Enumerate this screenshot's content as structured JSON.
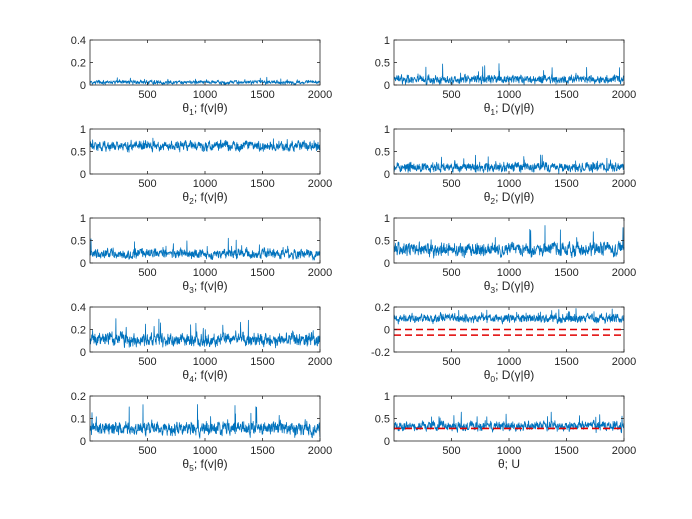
{
  "chart_data": [
    {
      "type": "line",
      "label": {
        "param": "θ",
        "sub": "1",
        "rest": "; f(v|θ)"
      },
      "xlim": [
        0,
        2000
      ],
      "ylim": [
        0,
        0.4
      ],
      "yticks": [
        {
          "v": 0,
          "t": "0"
        },
        {
          "v": 0.2,
          "t": "0.2"
        },
        {
          "v": 0.4,
          "t": "0.4"
        }
      ],
      "xticks": [
        {
          "v": 500,
          "t": "500"
        },
        {
          "v": 1000,
          "t": "1000"
        },
        {
          "v": 1500,
          "t": "1500"
        },
        {
          "v": 2000,
          "t": "2000"
        }
      ],
      "series": [
        {
          "name": "trace",
          "mean": 0.025,
          "spread": 0.012,
          "spikeMax": 0.075,
          "min": 0
        }
      ],
      "ref_lines": []
    },
    {
      "type": "line",
      "label": {
        "param": "θ",
        "sub": "1",
        "rest": "; D(γ|θ)"
      },
      "xlim": [
        0,
        2000
      ],
      "ylim": [
        0,
        1
      ],
      "yticks": [
        {
          "v": 0,
          "t": "0"
        },
        {
          "v": 0.5,
          "t": "0.5"
        },
        {
          "v": 1,
          "t": "1"
        }
      ],
      "xticks": [
        {
          "v": 500,
          "t": "500"
        },
        {
          "v": 1000,
          "t": "1000"
        },
        {
          "v": 1500,
          "t": "1500"
        },
        {
          "v": 2000,
          "t": "2000"
        }
      ],
      "series": [
        {
          "name": "trace",
          "mean": 0.12,
          "spread": 0.06,
          "spikeMax": 0.5,
          "min": 0
        }
      ],
      "ref_lines": []
    },
    {
      "type": "line",
      "label": {
        "param": "θ",
        "sub": "2",
        "rest": "; f(v|θ)"
      },
      "xlim": [
        0,
        2000
      ],
      "ylim": [
        0,
        1
      ],
      "yticks": [
        {
          "v": 0,
          "t": "0"
        },
        {
          "v": 0.5,
          "t": "0.5"
        },
        {
          "v": 1,
          "t": "1"
        }
      ],
      "xticks": [
        {
          "v": 500,
          "t": "500"
        },
        {
          "v": 1000,
          "t": "1000"
        },
        {
          "v": 1500,
          "t": "1500"
        },
        {
          "v": 2000,
          "t": "2000"
        }
      ],
      "series": [
        {
          "name": "trace",
          "mean": 0.62,
          "spread": 0.07,
          "spikeMax": 0.8,
          "min": 0.38
        }
      ],
      "ref_lines": []
    },
    {
      "type": "line",
      "label": {
        "param": "θ",
        "sub": "2",
        "rest": "; D(γ|θ)"
      },
      "xlim": [
        0,
        2000
      ],
      "ylim": [
        0,
        1
      ],
      "yticks": [
        {
          "v": 0,
          "t": "0"
        },
        {
          "v": 0.5,
          "t": "0.5"
        },
        {
          "v": 1,
          "t": "1"
        }
      ],
      "xticks": [
        {
          "v": 500,
          "t": "500"
        },
        {
          "v": 1000,
          "t": "1000"
        },
        {
          "v": 1500,
          "t": "1500"
        },
        {
          "v": 2000,
          "t": "2000"
        }
      ],
      "series": [
        {
          "name": "trace",
          "mean": 0.15,
          "spread": 0.07,
          "spikeMax": 0.45,
          "min": 0
        }
      ],
      "ref_lines": []
    },
    {
      "type": "line",
      "label": {
        "param": "θ",
        "sub": "3",
        "rest": "; f(v|θ)"
      },
      "xlim": [
        0,
        2000
      ],
      "ylim": [
        0,
        1
      ],
      "yticks": [
        {
          "v": 0,
          "t": "0"
        },
        {
          "v": 0.5,
          "t": "0.5"
        },
        {
          "v": 1,
          "t": "1"
        }
      ],
      "xticks": [
        {
          "v": 500,
          "t": "500"
        },
        {
          "v": 1000,
          "t": "1000"
        },
        {
          "v": 1500,
          "t": "1500"
        },
        {
          "v": 2000,
          "t": "2000"
        }
      ],
      "series": [
        {
          "name": "trace",
          "mean": 0.2,
          "spread": 0.07,
          "spikeMax": 0.55,
          "min": 0
        }
      ],
      "ref_lines": []
    },
    {
      "type": "line",
      "label": {
        "param": "θ",
        "sub": "3",
        "rest": "; D(γ|θ)"
      },
      "xlim": [
        0,
        2000
      ],
      "ylim": [
        0,
        1
      ],
      "yticks": [
        {
          "v": 0,
          "t": "0"
        },
        {
          "v": 0.5,
          "t": "0.5"
        },
        {
          "v": 1,
          "t": "1"
        }
      ],
      "xticks": [
        {
          "v": 500,
          "t": "500"
        },
        {
          "v": 1000,
          "t": "1000"
        },
        {
          "v": 1500,
          "t": "1500"
        },
        {
          "v": 2000,
          "t": "2000"
        }
      ],
      "series": [
        {
          "name": "trace",
          "mean": 0.3,
          "spread": 0.1,
          "spikeMax": 0.85,
          "min": 0
        }
      ],
      "ref_lines": []
    },
    {
      "type": "line",
      "label": {
        "param": "θ",
        "sub": "4",
        "rest": "; f(v|θ)"
      },
      "xlim": [
        0,
        2000
      ],
      "ylim": [
        0,
        0.4
      ],
      "yticks": [
        {
          "v": 0,
          "t": "0"
        },
        {
          "v": 0.2,
          "t": "0.2"
        },
        {
          "v": 0.4,
          "t": "0.4"
        }
      ],
      "xticks": [
        {
          "v": 500,
          "t": "500"
        },
        {
          "v": 1000,
          "t": "1000"
        },
        {
          "v": 1500,
          "t": "1500"
        },
        {
          "v": 2000,
          "t": "2000"
        }
      ],
      "series": [
        {
          "name": "trace",
          "mean": 0.11,
          "spread": 0.04,
          "spikeMax": 0.3,
          "min": 0
        }
      ],
      "ref_lines": []
    },
    {
      "type": "line",
      "label": {
        "param": "θ",
        "sub": "0",
        "rest": "; D(γ|θ)"
      },
      "xlim": [
        0,
        2000
      ],
      "ylim": [
        -0.2,
        0.2
      ],
      "yticks": [
        {
          "v": -0.2,
          "t": "-0.2"
        },
        {
          "v": 0,
          "t": "0"
        },
        {
          "v": 0.2,
          "t": "0.2"
        }
      ],
      "xticks": [
        {
          "v": 500,
          "t": "500"
        },
        {
          "v": 1000,
          "t": "1000"
        },
        {
          "v": 1500,
          "t": "1500"
        },
        {
          "v": 2000,
          "t": "2000"
        }
      ],
      "series": [
        {
          "name": "trace",
          "mean": 0.1,
          "spread": 0.025,
          "spikeMax": 0.19,
          "min": -0.02
        }
      ],
      "ref_lines": [
        0,
        -0.05
      ]
    },
    {
      "type": "line",
      "label": {
        "param": "θ",
        "sub": "5",
        "rest": "; f(v|θ)"
      },
      "xlim": [
        0,
        2000
      ],
      "ylim": [
        0,
        0.2
      ],
      "yticks": [
        {
          "v": 0,
          "t": "0"
        },
        {
          "v": 0.1,
          "t": "0.1"
        },
        {
          "v": 0.2,
          "t": "0.2"
        }
      ],
      "xticks": [
        {
          "v": 500,
          "t": "500"
        },
        {
          "v": 1000,
          "t": "1000"
        },
        {
          "v": 1500,
          "t": "1500"
        },
        {
          "v": 2000,
          "t": "2000"
        }
      ],
      "series": [
        {
          "name": "trace",
          "mean": 0.055,
          "spread": 0.02,
          "spikeMax": 0.17,
          "min": 0
        }
      ],
      "ref_lines": []
    },
    {
      "type": "line",
      "label": {
        "param": "θ",
        "sub": "",
        "rest": "; U"
      },
      "xlim": [
        0,
        2000
      ],
      "ylim": [
        0,
        1
      ],
      "yticks": [
        {
          "v": 0,
          "t": "0"
        },
        {
          "v": 0.5,
          "t": "0.5"
        },
        {
          "v": 1,
          "t": "1"
        }
      ],
      "xticks": [
        {
          "v": 500,
          "t": "500"
        },
        {
          "v": 1000,
          "t": "1000"
        },
        {
          "v": 1500,
          "t": "1500"
        },
        {
          "v": 2000,
          "t": "2000"
        }
      ],
      "series": [
        {
          "name": "trace",
          "mean": 0.33,
          "spread": 0.07,
          "spikeMax": 0.65,
          "min": 0.1
        }
      ],
      "ref_lines": [
        0.28
      ]
    }
  ],
  "colors": {
    "trace": "#0072BD",
    "reference": "#e00000",
    "axes": "#262626"
  }
}
